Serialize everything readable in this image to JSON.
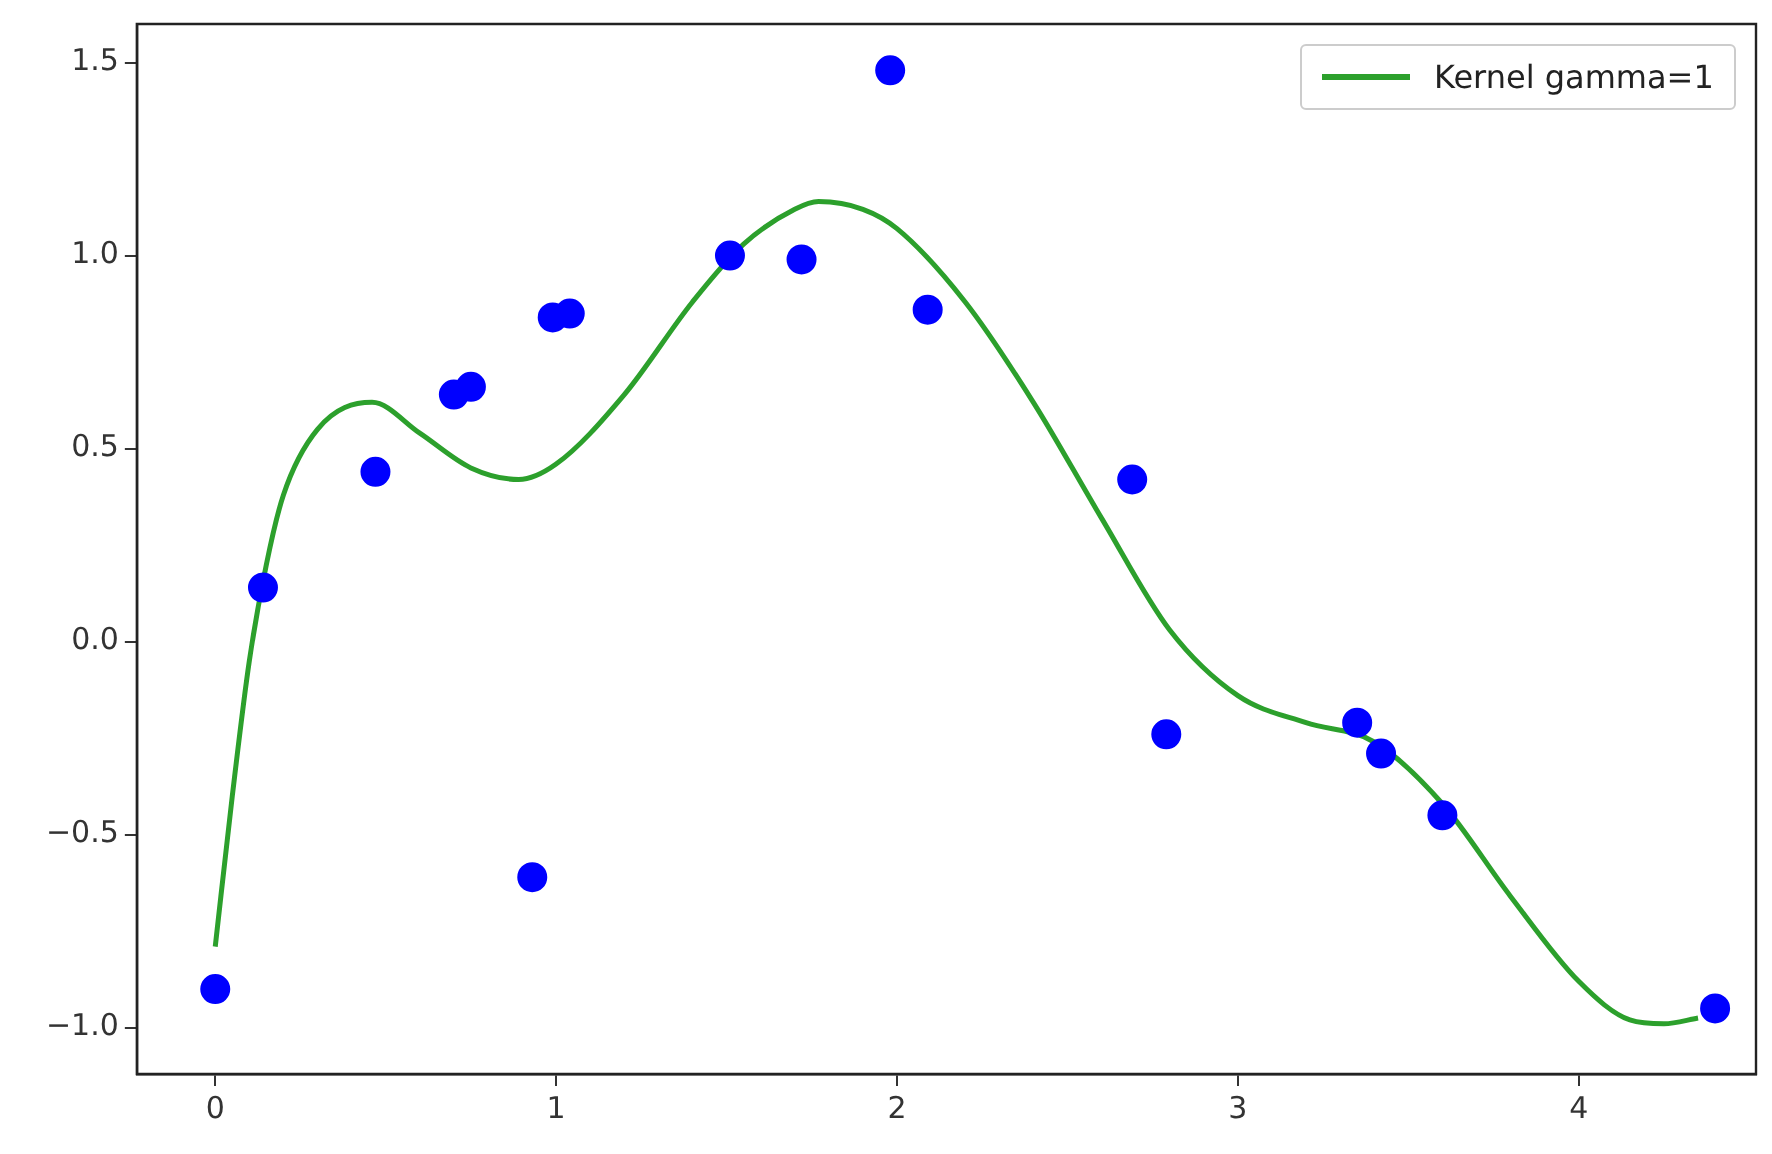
{
  "chart_data": {
    "type": "scatter",
    "xlim": [
      -0.23,
      4.52
    ],
    "ylim": [
      -1.12,
      1.6
    ],
    "xticks": [
      0,
      1,
      2,
      3,
      4
    ],
    "yticks": [
      {
        "value": -1,
        "label": "−1.0"
      },
      {
        "value": -0.5,
        "label": "−0.5"
      },
      {
        "value": 0,
        "label": "0.0"
      },
      {
        "value": 0.5,
        "label": "0.5"
      },
      {
        "value": 1,
        "label": "1.0"
      },
      {
        "value": 1.5,
        "label": "1.5"
      }
    ],
    "grid": false,
    "legend": "top right",
    "marker": "circle",
    "series": [
      {
        "color": "#0000ff",
        "x": [
          0.0,
          0.14,
          0.47,
          0.7,
          0.75,
          0.99,
          1.04,
          0.93,
          1.51,
          1.72,
          1.98,
          2.09,
          2.69,
          2.79,
          3.35,
          3.42,
          3.6,
          4.4
        ],
        "values": [
          -0.9,
          0.14,
          0.44,
          0.64,
          0.66,
          0.84,
          0.85,
          -0.61,
          1.0,
          0.99,
          1.48,
          0.86,
          0.42,
          -0.24,
          -0.21,
          -0.29,
          -0.45,
          -0.95
        ]
      },
      {
        "type": "line",
        "name": "Kernel gamma=1",
        "color": "#2ca02c",
        "marker": "none",
        "x": [
          0,
          0.05,
          0.1,
          0.15,
          0.2,
          0.3,
          0.46,
          0.6,
          0.75,
          0.89,
          1.0,
          1.2,
          1.4,
          1.55,
          1.7,
          1.77,
          1.9,
          2.0,
          2.2,
          2.4,
          2.6,
          2.8,
          3.0,
          3.2,
          3.4,
          3.6,
          3.8,
          4.0,
          4.15,
          4.25,
          4.35
        ],
        "values": [
          -0.79,
          -0.4,
          -0.05,
          0.2,
          0.38,
          0.55,
          0.62,
          0.54,
          0.45,
          0.42,
          0.46,
          0.64,
          0.88,
          1.03,
          1.12,
          1.14,
          1.12,
          1.07,
          0.88,
          0.62,
          0.32,
          0.03,
          -0.14,
          -0.21,
          -0.26,
          -0.42,
          -0.66,
          -0.88,
          -0.98,
          -0.99,
          -0.975
        ]
      }
    ]
  }
}
